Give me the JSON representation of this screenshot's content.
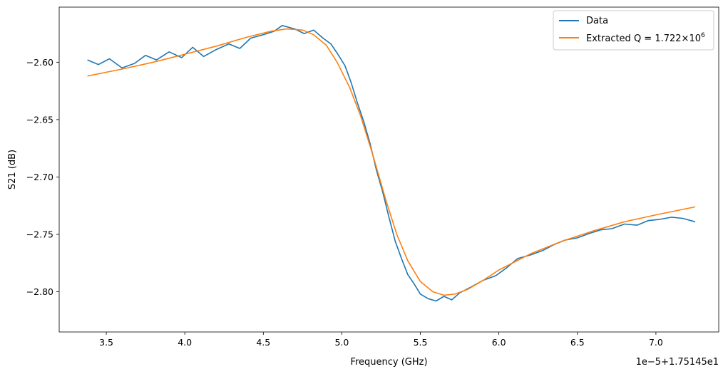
{
  "chart_data": {
    "type": "line",
    "title": "",
    "xlabel": "Frequency (GHz)",
    "ylabel": "S21 (dB)",
    "x_offset_text": "1e−5+1.75145e1",
    "xlim": [
      3.2,
      7.4
    ],
    "ylim": [
      -2.835,
      -2.552
    ],
    "grid": false,
    "legend_position": "top-right",
    "x_ticks": [
      3.5,
      4.0,
      4.5,
      5.0,
      5.5,
      6.0,
      6.5,
      7.0
    ],
    "x_tick_labels": [
      "3.5",
      "4.0",
      "4.5",
      "5.0",
      "5.5",
      "6.0",
      "6.5",
      "7.0"
    ],
    "y_ticks": [
      -2.8,
      -2.75,
      -2.7,
      -2.65,
      -2.6
    ],
    "y_tick_labels": [
      "−2.80",
      "−2.75",
      "−2.70",
      "−2.65",
      "−2.60"
    ],
    "series": [
      {
        "name": "Data",
        "color": "#1f77b4",
        "x": [
          3.38,
          3.45,
          3.52,
          3.6,
          3.68,
          3.75,
          3.82,
          3.9,
          3.98,
          4.05,
          4.12,
          4.2,
          4.28,
          4.35,
          4.42,
          4.5,
          4.57,
          4.62,
          4.7,
          4.76,
          4.82,
          4.88,
          4.93,
          4.97,
          5.02,
          5.06,
          5.1,
          5.14,
          5.18,
          5.22,
          5.26,
          5.3,
          5.34,
          5.38,
          5.42,
          5.46,
          5.5,
          5.55,
          5.6,
          5.65,
          5.7,
          5.75,
          5.82,
          5.9,
          5.98,
          6.05,
          6.12,
          6.2,
          6.28,
          6.35,
          6.42,
          6.5,
          6.58,
          6.65,
          6.72,
          6.8,
          6.88,
          6.95,
          7.02,
          7.1,
          7.17,
          7.25
        ],
        "y": [
          -2.598,
          -2.602,
          -2.597,
          -2.605,
          -2.601,
          -2.594,
          -2.598,
          -2.591,
          -2.596,
          -2.587,
          -2.595,
          -2.589,
          -2.584,
          -2.588,
          -2.579,
          -2.576,
          -2.573,
          -2.568,
          -2.571,
          -2.575,
          -2.572,
          -2.579,
          -2.584,
          -2.592,
          -2.603,
          -2.618,
          -2.636,
          -2.652,
          -2.671,
          -2.694,
          -2.713,
          -2.735,
          -2.756,
          -2.771,
          -2.785,
          -2.793,
          -2.802,
          -2.806,
          -2.808,
          -2.804,
          -2.807,
          -2.801,
          -2.796,
          -2.79,
          -2.786,
          -2.779,
          -2.771,
          -2.768,
          -2.764,
          -2.759,
          -2.755,
          -2.753,
          -2.749,
          -2.746,
          -2.745,
          -2.741,
          -2.742,
          -2.738,
          -2.737,
          -2.735,
          -2.736,
          -2.739
        ]
      },
      {
        "name": "Extracted Q = 1.722×10⁶",
        "color": "#ff7f0e",
        "x": [
          3.38,
          3.6,
          3.8,
          4.0,
          4.2,
          4.4,
          4.55,
          4.65,
          4.75,
          4.82,
          4.9,
          4.97,
          5.05,
          5.12,
          5.2,
          5.28,
          5.35,
          5.42,
          5.5,
          5.58,
          5.65,
          5.72,
          5.8,
          5.9,
          6.0,
          6.2,
          6.4,
          6.6,
          6.8,
          7.0,
          7.25
        ],
        "y": [
          -2.612,
          -2.606,
          -2.6,
          -2.593,
          -2.586,
          -2.578,
          -2.573,
          -2.571,
          -2.572,
          -2.576,
          -2.585,
          -2.6,
          -2.622,
          -2.647,
          -2.682,
          -2.72,
          -2.75,
          -2.773,
          -2.791,
          -2.8,
          -2.803,
          -2.802,
          -2.798,
          -2.79,
          -2.781,
          -2.767,
          -2.756,
          -2.747,
          -2.739,
          -2.733,
          -2.726
        ]
      }
    ],
    "legend": [
      {
        "label": "Data"
      },
      {
        "label_prefix": "Extracted Q = 1.722×10",
        "label_exponent": "6"
      }
    ]
  }
}
